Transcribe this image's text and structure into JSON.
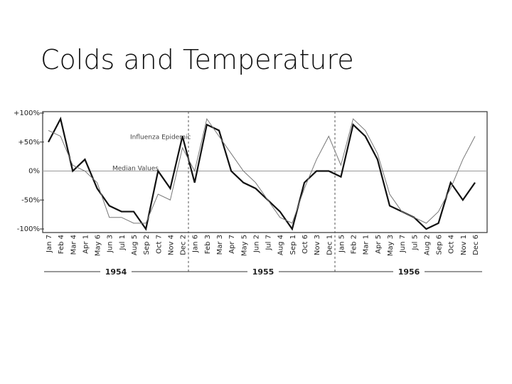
{
  "chart_data": {
    "type": "line",
    "title": "Colds and Temperature",
    "categories": [
      "Jan 7",
      "Feb 4",
      "Mar 4",
      "Apr 1",
      "May 6",
      "Jun 3",
      "Jul 1",
      "Aug 5",
      "Sep 2",
      "Oct 7",
      "Nov 4",
      "Dec 2",
      "Jan 6",
      "Feb 3",
      "Mar 3",
      "Apr 7",
      "May 5",
      "Jun 2",
      "Jul 7",
      "Aug 4",
      "Sep 1",
      "Oct 6",
      "Nov 3",
      "Dec 1",
      "Jan 5",
      "Feb 2",
      "Mar 1",
      "Apr 5",
      "May 3",
      "Jun 7",
      "Jul 5",
      "Aug 2",
      "Sep 6",
      "Oct 4",
      "Nov 1",
      "Dec 6"
    ],
    "series": [
      {
        "color": "#111111",
        "values": [
          50,
          90,
          0,
          20,
          -30,
          -60,
          -70,
          -70,
          -100,
          0,
          -30,
          60,
          -20,
          80,
          70,
          0,
          -20,
          -30,
          -50,
          -70,
          -100,
          -20,
          0,
          0,
          -10,
          80,
          60,
          20,
          -60,
          -70,
          -80,
          -100,
          -90,
          -20,
          -50,
          -20
        ]
      },
      {
        "color": "#777777",
        "values": [
          70,
          60,
          10,
          0,
          -20,
          -80,
          -80,
          -90,
          -90,
          -40,
          -50,
          40,
          0,
          90,
          60,
          30,
          0,
          -20,
          -50,
          -80,
          -90,
          -30,
          20,
          60,
          10,
          90,
          70,
          30,
          -40,
          -70,
          -80,
          -90,
          -70,
          -30,
          20,
          60
        ]
      }
    ],
    "years": [
      "1954",
      "1955",
      "1956"
    ],
    "annotations": [
      "Influenza Epidemic",
      "Median Values"
    ],
    "ylim": [
      -100,
      100
    ],
    "yticks": [
      {
        "value": 100,
        "label": "+100%"
      },
      {
        "value": 50,
        "label": "+50%"
      },
      {
        "value": 0,
        "label": "0%"
      },
      {
        "value": -50,
        "label": "-50%"
      },
      {
        "value": -100,
        "label": "-100%"
      }
    ]
  }
}
